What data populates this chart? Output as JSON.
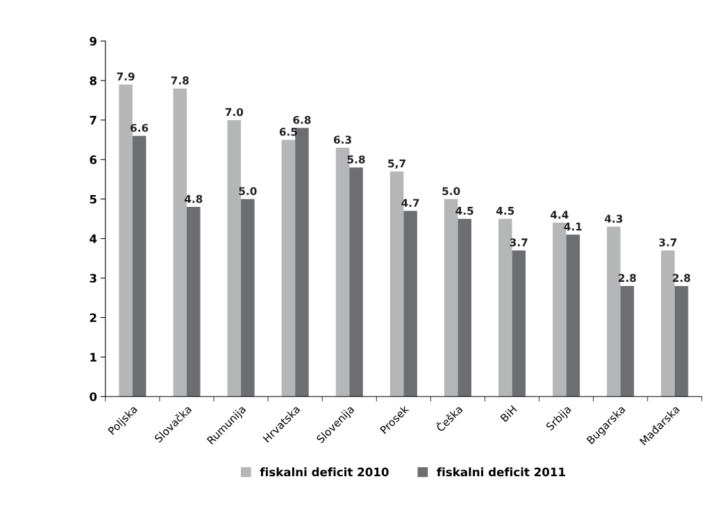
{
  "chart_data": {
    "type": "bar",
    "categories": [
      "Poljska",
      "Slovačka",
      "Rumunija",
      "Hrvatska",
      "Slovenija",
      "Prosek",
      "Češka",
      "BiH",
      "Srbija",
      "Bugarska",
      "Mađarska"
    ],
    "series": [
      {
        "name": "fiskalni deficit 2010",
        "color": "#b5b6b8",
        "values": [
          7.9,
          7.8,
          7.0,
          6.5,
          6.3,
          5.7,
          5.0,
          4.5,
          4.4,
          4.3,
          3.7
        ],
        "value_labels": [
          "7.9",
          "7.8",
          "7.0",
          "6.5",
          "6.3",
          "5,7",
          "5.0",
          "4.5",
          "4.4",
          "4.3",
          "3.7"
        ]
      },
      {
        "name": "fiskalni deficit 2011",
        "color": "#6d6e71",
        "values": [
          6.6,
          4.8,
          5.0,
          6.8,
          5.8,
          4.7,
          4.5,
          3.7,
          4.1,
          2.8,
          2.8
        ],
        "value_labels": [
          "6.6",
          "4.8",
          "5.0",
          "6.8",
          "5.8",
          "4.7",
          "4.5",
          "3.7",
          "4.1",
          "2.8",
          "2.8"
        ]
      }
    ],
    "ylim": [
      0,
      9
    ],
    "yticks": [
      0,
      1,
      2,
      3,
      4,
      5,
      6,
      7,
      8,
      9
    ],
    "grid": false,
    "legend": "bottom"
  }
}
